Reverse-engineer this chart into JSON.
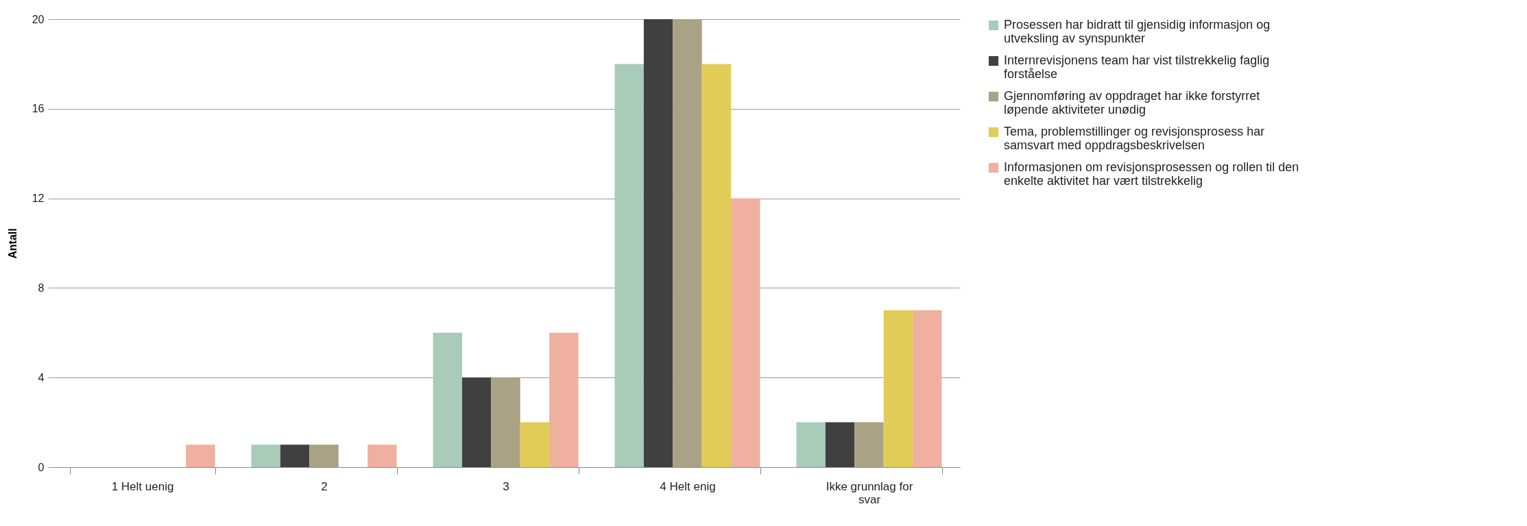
{
  "chart_data": {
    "type": "bar",
    "ylabel": "Antall",
    "categories": [
      "1 Helt uenig",
      "2",
      "3",
      "4 Helt enig",
      "Ikke grunnlag for svar"
    ],
    "series": [
      {
        "name": "Prosessen har bidratt til gjensidig informasjon og utveksling av synspunkter",
        "color": "#a9cbb9",
        "values": [
          0,
          1,
          6,
          18,
          2
        ]
      },
      {
        "name": "Internrevisjonens team har vist tilstrekkelig faglig forståelse",
        "color": "#404040",
        "values": [
          0,
          1,
          4,
          20,
          2
        ]
      },
      {
        "name": "Gjennomføring av oppdraget har ikke forstyrret løpende aktiviteter unødig",
        "color": "#aaa284",
        "values": [
          0,
          1,
          4,
          20,
          2
        ]
      },
      {
        "name": "Tema, problemstillinger og revisjonsprosess har samsvart med oppdragsbeskrivelsen",
        "color": "#e2cc58",
        "values": [
          0,
          0,
          2,
          18,
          7
        ]
      },
      {
        "name": "Informasjonen om revisjonsprosessen og rollen til den enkelte aktivitet har vært tilstrekkelig",
        "color": "#efb0a0",
        "values": [
          1,
          1,
          6,
          12,
          7
        ]
      }
    ],
    "ylim": [
      0,
      20
    ],
    "yticks": [
      0,
      4,
      8,
      12,
      16,
      20
    ],
    "grid": "y",
    "legend": "right"
  }
}
